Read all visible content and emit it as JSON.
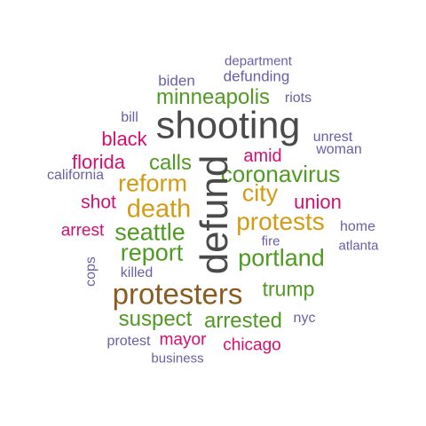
{
  "colors": {
    "purple": "#6a5ea8",
    "green": "#4f9a22",
    "magenta": "#d40f73",
    "gold": "#d49b12",
    "brown": "#8b5a1e",
    "gray": "#4a4a4a"
  },
  "words": [
    {
      "text": "department",
      "color": "purple"
    },
    {
      "text": "biden",
      "color": "purple"
    },
    {
      "text": "defunding",
      "color": "purple"
    },
    {
      "text": "minneapolis",
      "color": "green"
    },
    {
      "text": "riots",
      "color": "purple"
    },
    {
      "text": "bill",
      "color": "purple"
    },
    {
      "text": "shooting",
      "color": "gray"
    },
    {
      "text": "black",
      "color": "magenta"
    },
    {
      "text": "unrest",
      "color": "purple"
    },
    {
      "text": "woman",
      "color": "purple"
    },
    {
      "text": "florida",
      "color": "magenta"
    },
    {
      "text": "calls",
      "color": "green"
    },
    {
      "text": "amid",
      "color": "magenta"
    },
    {
      "text": "california",
      "color": "purple"
    },
    {
      "text": "coronavirus",
      "color": "green"
    },
    {
      "text": "reform",
      "color": "gold"
    },
    {
      "text": "city",
      "color": "gold"
    },
    {
      "text": "shot",
      "color": "magenta"
    },
    {
      "text": "union",
      "color": "magenta"
    },
    {
      "text": "death",
      "color": "gold"
    },
    {
      "text": "protests",
      "color": "gold"
    },
    {
      "text": "defund",
      "color": "gray"
    },
    {
      "text": "arrest",
      "color": "magenta"
    },
    {
      "text": "seattle",
      "color": "green"
    },
    {
      "text": "home",
      "color": "purple"
    },
    {
      "text": "fire",
      "color": "purple"
    },
    {
      "text": "atlanta",
      "color": "purple"
    },
    {
      "text": "report",
      "color": "green"
    },
    {
      "text": "portland",
      "color": "green"
    },
    {
      "text": "cops",
      "color": "purple"
    },
    {
      "text": "killed",
      "color": "purple"
    },
    {
      "text": "protesters",
      "color": "brown"
    },
    {
      "text": "trump",
      "color": "green"
    },
    {
      "text": "suspect",
      "color": "green"
    },
    {
      "text": "arrested",
      "color": "green"
    },
    {
      "text": "nyc",
      "color": "purple"
    },
    {
      "text": "protest",
      "color": "purple"
    },
    {
      "text": "mayor",
      "color": "magenta"
    },
    {
      "text": "chicago",
      "color": "magenta"
    },
    {
      "text": "business",
      "color": "purple"
    }
  ]
}
